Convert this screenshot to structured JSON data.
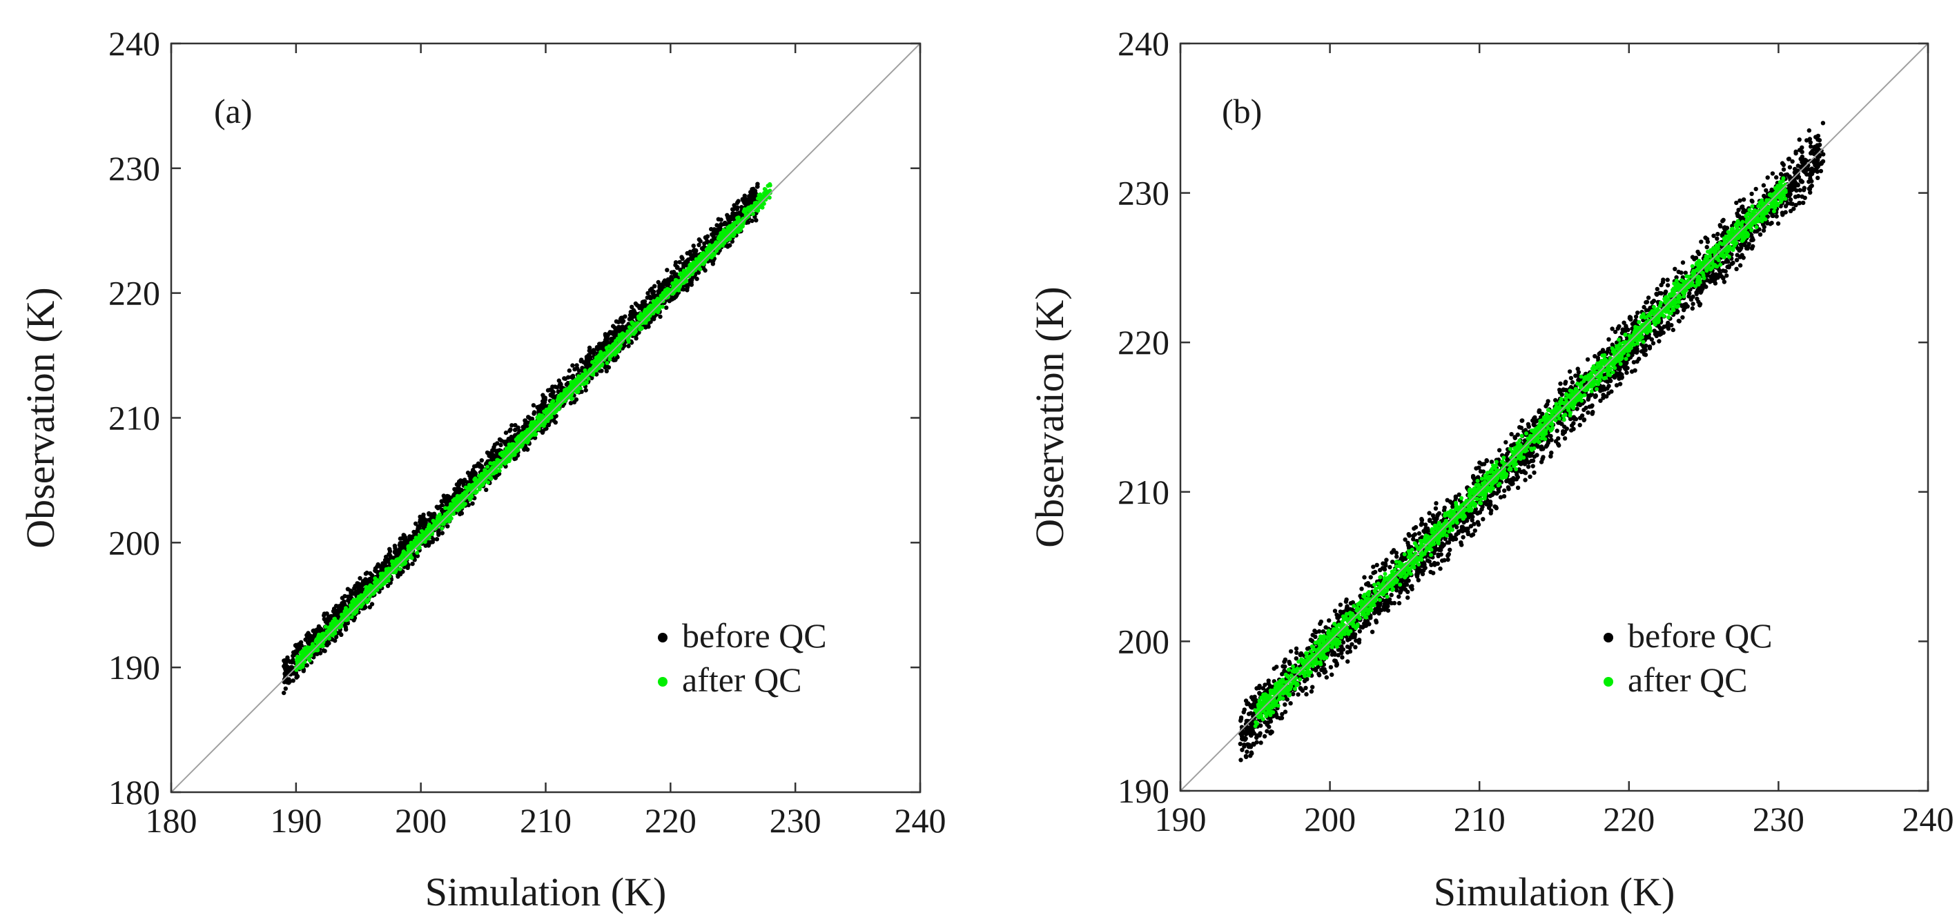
{
  "chart_data": [
    {
      "type": "scatter",
      "panel_label": "(a)",
      "xlabel": "Simulation (K)",
      "ylabel": "Observation (K)",
      "xlim": [
        180,
        240
      ],
      "ylim": [
        180,
        240
      ],
      "xticks": [
        180,
        190,
        200,
        210,
        220,
        230,
        240
      ],
      "yticks": [
        180,
        190,
        200,
        210,
        220,
        230,
        240
      ],
      "reference_line": "y = x",
      "legend_position": "bottom-right",
      "series": [
        {
          "name": "before QC",
          "color": "#000000",
          "band": {
            "x_range": [
              189,
              227
            ],
            "obs_offset_range": [
              -1.2,
              2.2
            ]
          }
        },
        {
          "name": "after QC",
          "color": "#00ee00",
          "band": {
            "x_range": [
              190,
              228
            ],
            "obs_offset_range": [
              -0.6,
              0.9
            ]
          }
        }
      ]
    },
    {
      "type": "scatter",
      "panel_label": "(b)",
      "xlabel": "Simulation (K)",
      "ylabel": "Observation (K)",
      "xlim": [
        190,
        240
      ],
      "ylim": [
        190,
        240
      ],
      "xticks": [
        190,
        200,
        210,
        220,
        230,
        240
      ],
      "yticks": [
        190,
        200,
        210,
        220,
        230,
        240
      ],
      "reference_line": "y = x",
      "legend_position": "bottom-right",
      "series": [
        {
          "name": "before QC",
          "color": "#000000",
          "band": {
            "x_range": [
              194,
              233
            ],
            "obs_offset_range": [
              -2.6,
              2.2
            ]
          }
        },
        {
          "name": "after QC",
          "color": "#00ee00",
          "band": {
            "x_range": [
              195,
              230.5
            ],
            "obs_offset_range": [
              -1.0,
              1.0
            ]
          }
        }
      ]
    }
  ]
}
